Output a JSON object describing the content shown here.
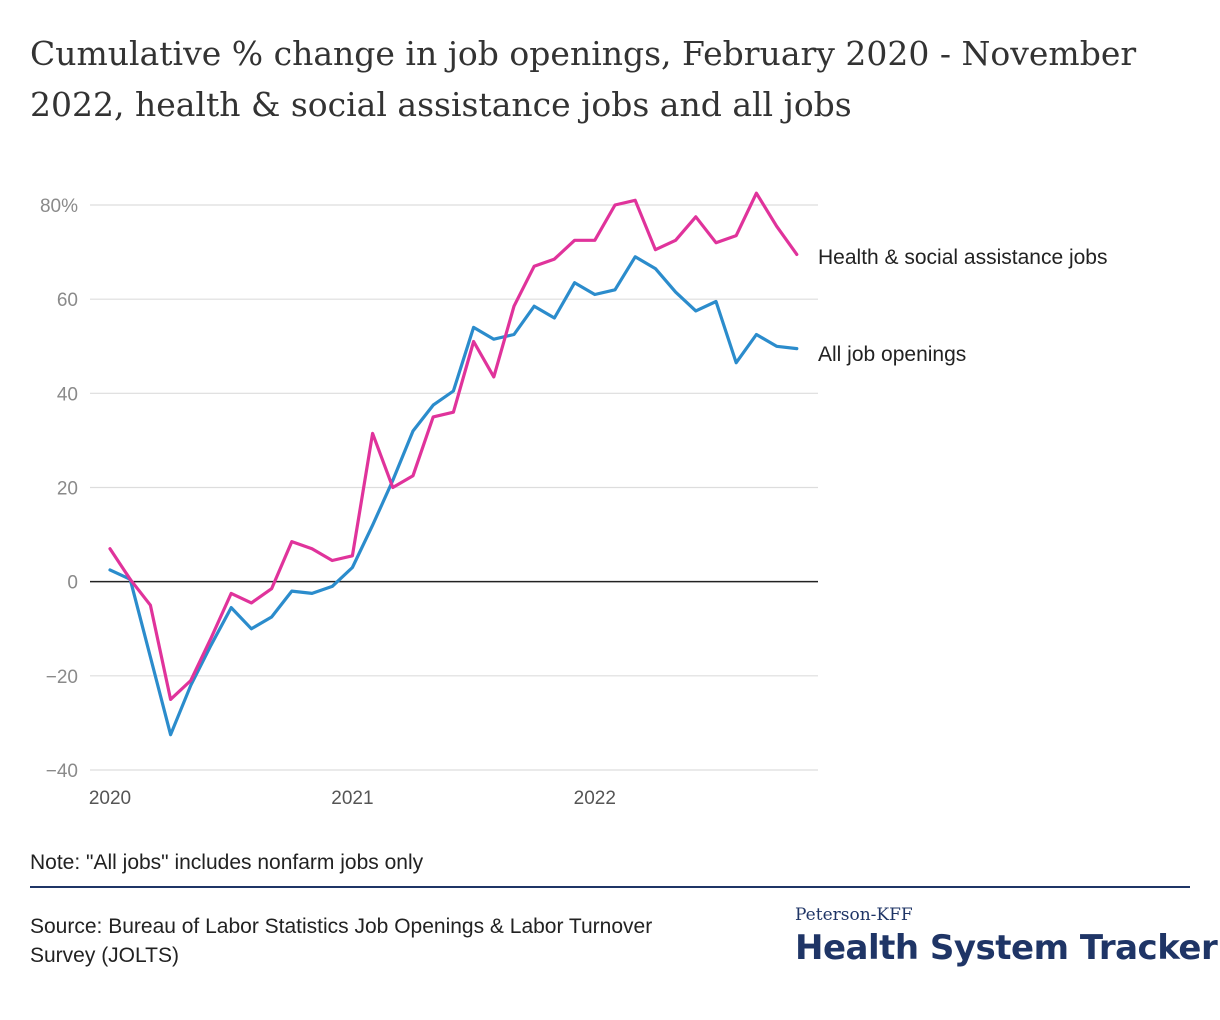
{
  "title": "Cumulative % change in job openings, February 2020 - November 2022, health & social assistance jobs and all jobs",
  "note": "Note: \"All jobs\" includes nonfarm jobs only",
  "source": "Source: Bureau of Labor Statistics Job Openings & Labor Turnover Survey (JOLTS)",
  "brand": {
    "sub": "Peterson-KFF",
    "main": "Health System Tracker"
  },
  "chart_data": {
    "type": "line",
    "x_start": "2020-01",
    "x": [
      "2020-01",
      "2020-02",
      "2020-03",
      "2020-04",
      "2020-05",
      "2020-06",
      "2020-07",
      "2020-08",
      "2020-09",
      "2020-10",
      "2020-11",
      "2020-12",
      "2021-01",
      "2021-02",
      "2021-03",
      "2021-04",
      "2021-05",
      "2021-06",
      "2021-07",
      "2021-08",
      "2021-09",
      "2021-10",
      "2021-11",
      "2021-12",
      "2022-01",
      "2022-02",
      "2022-03",
      "2022-04",
      "2022-05",
      "2022-06",
      "2022-07",
      "2022-08",
      "2022-09",
      "2022-10",
      "2022-11"
    ],
    "x_ticks": [
      {
        "label": "2020",
        "index": 0
      },
      {
        "label": "2021",
        "index": 12
      },
      {
        "label": "2022",
        "index": 24
      }
    ],
    "ylim": [
      -40,
      85
    ],
    "y_ticks": [
      -40,
      -20,
      0,
      20,
      40,
      60,
      80
    ],
    "y_tick_labels": [
      "−40",
      "−20",
      "0",
      "20",
      "40",
      "60",
      "80%"
    ],
    "grid": true,
    "series": [
      {
        "name": "Health & social assistance jobs",
        "color": "#e0339b",
        "values": [
          7,
          0.5,
          -5,
          -25,
          -21,
          -12,
          -2.5,
          -4.5,
          -1.5,
          8.5,
          7,
          4.5,
          5.5,
          31.5,
          20,
          22.5,
          35,
          36,
          51,
          43.5,
          58.5,
          67,
          68.5,
          72.5,
          72.5,
          80,
          81,
          70.5,
          72.5,
          77.5,
          72,
          73.5,
          82.5,
          75.5,
          69.5
        ]
      },
      {
        "name": "All job openings",
        "color": "#2b8ccc",
        "values": [
          2.5,
          0.5,
          -16,
          -32.5,
          -22,
          -13.5,
          -5.5,
          -10,
          -7.5,
          -2,
          -2.5,
          -1,
          3,
          12,
          21.5,
          32,
          37.5,
          40.5,
          54,
          51.5,
          52.5,
          58.5,
          56,
          63.5,
          61,
          62,
          69,
          66.5,
          61.5,
          57.5,
          59.5,
          46.5,
          52.5,
          50,
          49.5
        ]
      }
    ]
  }
}
